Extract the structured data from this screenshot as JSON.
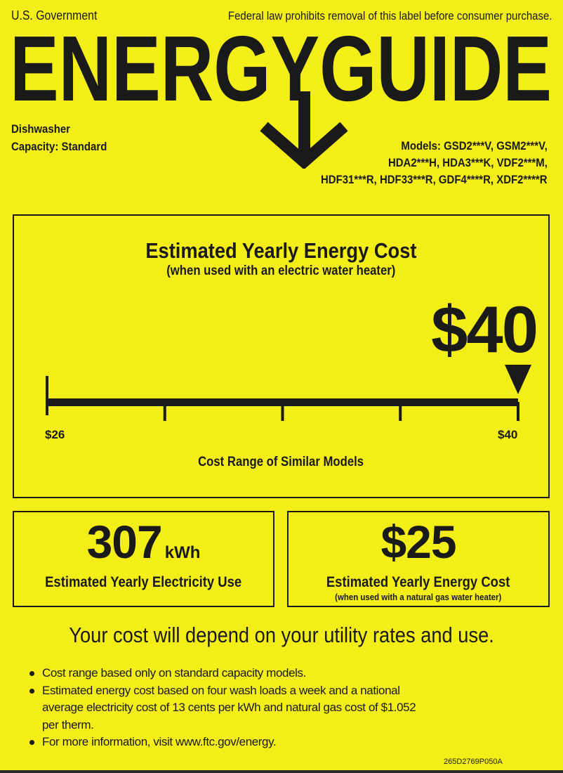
{
  "header": {
    "government": "U.S. Government",
    "notice": "Federal law prohibits removal of this label before consumer purchase.",
    "title": "ENERGYGUIDE"
  },
  "product": {
    "type": "Dishwasher",
    "capacity": "Capacity: Standard",
    "models_lines": [
      "Models: GSD2***V, GSM2***V,",
      "HDA2***H, HDA3***K, VDF2***M,",
      "HDF31***R, HDF33***R, GDF4****R, XDF2****R"
    ]
  },
  "main_cost": {
    "title": "Estimated Yearly Energy Cost",
    "subtitle": "(when used with an electric water heater)",
    "value": "$40",
    "range_min_label": "$26",
    "range_max_label": "$40",
    "range_min": 26,
    "range_max": 40,
    "current": 40,
    "range_caption": "Cost Range of Similar Models"
  },
  "electricity": {
    "value": "307",
    "unit": "kWh",
    "label": "Estimated Yearly Electricity Use"
  },
  "gas_cost": {
    "value": "$25",
    "label": "Estimated Yearly Energy Cost",
    "sublabel": "(when used with a natural gas water heater)"
  },
  "statement": "Your cost will depend on your utility rates and use.",
  "bullets": [
    "Cost range based only on standard capacity models.",
    "Estimated energy cost based on four wash loads a week and a national average electricity cost of 13 cents per kWh and natural gas cost of $1.052 per therm.",
    "For more information, visit www.ftc.gov/energy."
  ],
  "code": "265D2769P050A",
  "colors": {
    "background": "#f4ee18",
    "ink": "#1a1a1a"
  }
}
